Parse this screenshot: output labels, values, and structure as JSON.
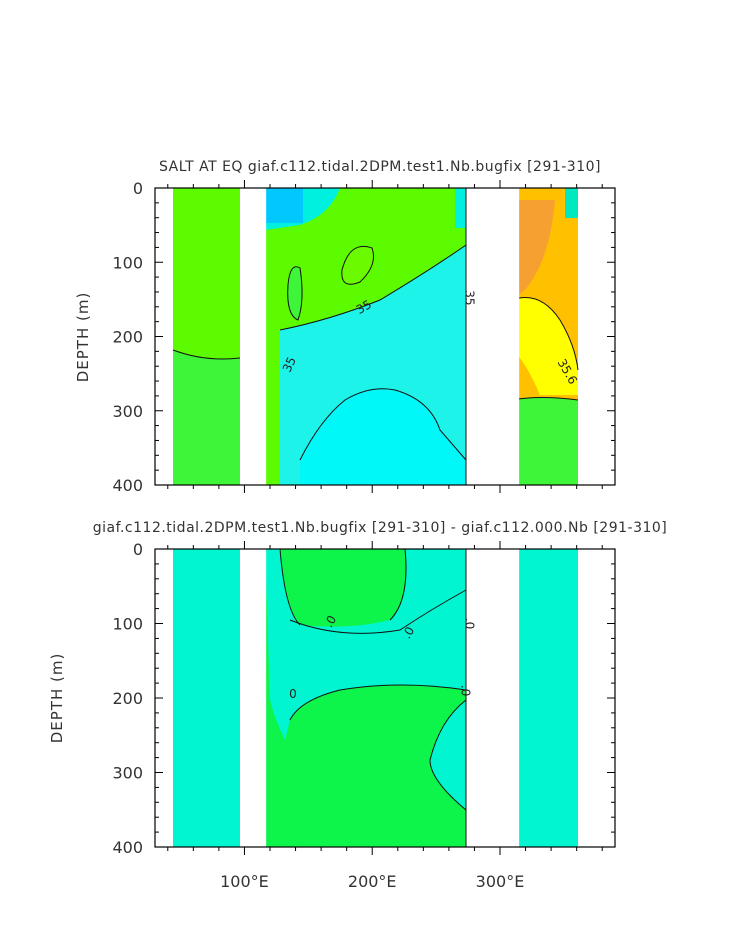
{
  "chart_data": [
    {
      "type": "contour",
      "title": "SALT AT EQ giaf.c112.tidal.2DPM.test1.Nb.bugfix [291-310]",
      "ylabel": "DEPTH (m)",
      "xlim": [
        30,
        390
      ],
      "ylim": [
        400,
        0
      ],
      "yticks": [
        "0",
        "100",
        "200",
        "300",
        "400"
      ],
      "xticks": [
        "",
        "",
        ""
      ],
      "land_gaps_lon": [
        [
          97,
          117
        ],
        [
          278,
          315
        ]
      ],
      "contour_labels": [
        {
          "text": "35",
          "lon": 195,
          "depth": 165,
          "angle": -30
        },
        {
          "text": "35",
          "lon": 273,
          "depth": 148,
          "angle": 90
        },
        {
          "text": "35",
          "lon": 138,
          "depth": 240,
          "angle": -65
        },
        {
          "text": "35.6",
          "lon": 350,
          "depth": 250,
          "angle": 60
        }
      ],
      "colors": {
        "green": "#5dfb00",
        "lightgreen": "#3ff53a",
        "cyan": "#00f5f0",
        "aqua": "#00e8d8",
        "blue": "#00c8ff",
        "orange": "#f5a030",
        "yellow": "#ffff00",
        "amber": "#ffc000"
      }
    },
    {
      "type": "contour",
      "title": "giaf.c112.tidal.2DPM.test1.Nb.bugfix [291-310] - giaf.c112.000.Nb [291-310]",
      "ylabel": "DEPTH (m)",
      "xlim": [
        30,
        390
      ],
      "ylim": [
        400,
        0
      ],
      "yticks": [
        "0",
        "100",
        "200",
        "300",
        "400"
      ],
      "xticks": [
        "100°E",
        "200°E",
        "300°E"
      ],
      "land_gaps_lon": [
        [
          97,
          117
        ],
        [
          278,
          315
        ]
      ],
      "contour_labels": [
        {
          "text": ".0",
          "lon": 170,
          "depth": 100,
          "angle": -60
        },
        {
          "text": ".0",
          "lon": 231,
          "depth": 115,
          "angle": -60
        },
        {
          "text": ".0",
          "lon": 273,
          "depth": 100,
          "angle": 90
        },
        {
          "text": ".0",
          "lon": 270,
          "depth": 190,
          "angle": 90
        },
        {
          "text": "0",
          "lon": 138,
          "depth": 200,
          "angle": 0
        }
      ],
      "colors": {
        "green": "#0df54a",
        "aqua": "#00f5d0",
        "cyan": "#00f0e0"
      }
    }
  ]
}
